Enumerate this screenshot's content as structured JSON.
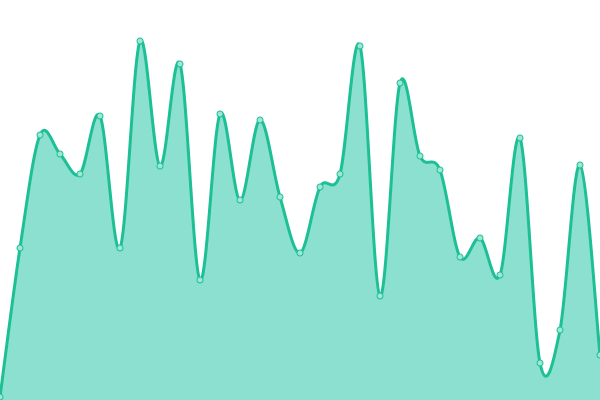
{
  "chart_data": {
    "type": "area",
    "title": "",
    "xlabel": "",
    "ylabel": "",
    "x": [
      0,
      1,
      2,
      3,
      4,
      5,
      6,
      7,
      8,
      9,
      10,
      11,
      12,
      13,
      14,
      15,
      16,
      17,
      18,
      19,
      20,
      21,
      22,
      23,
      24,
      25,
      26,
      27,
      28,
      29,
      30
    ],
    "values": [
      3,
      152,
      265,
      246,
      226,
      284,
      152,
      359,
      234,
      336,
      120,
      286,
      200,
      280,
      203,
      147,
      213,
      226,
      354,
      104,
      317,
      244,
      230,
      143,
      162,
      125,
      262,
      37,
      70,
      235,
      45
    ],
    "xlim": [
      0,
      30
    ],
    "ylim": [
      0,
      400
    ],
    "grid": false,
    "axes_visible": false,
    "markers": true,
    "curve": "smooth",
    "colors": {
      "line": "#1dbf95",
      "fill": "#8be0cf",
      "marker_fill": "#9ee6d6"
    }
  }
}
